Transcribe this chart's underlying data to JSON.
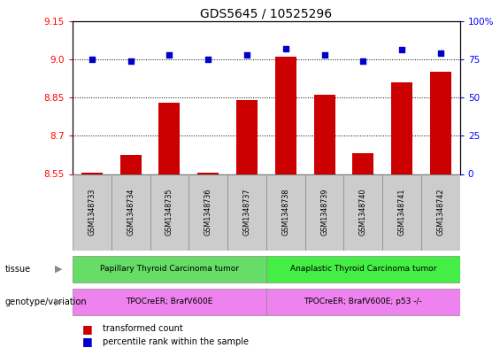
{
  "title": "GDS5645 / 10525296",
  "samples": [
    "GSM1348733",
    "GSM1348734",
    "GSM1348735",
    "GSM1348736",
    "GSM1348737",
    "GSM1348738",
    "GSM1348739",
    "GSM1348740",
    "GSM1348741",
    "GSM1348742"
  ],
  "transformed_count": [
    8.556,
    8.625,
    8.83,
    8.556,
    8.84,
    9.01,
    8.86,
    8.63,
    8.91,
    8.95
  ],
  "percentile_rank": [
    75,
    74,
    78,
    75,
    78,
    82,
    78,
    74,
    81,
    79
  ],
  "ylim_left": [
    8.55,
    9.15
  ],
  "ylim_right": [
    0,
    100
  ],
  "yticks_left": [
    8.55,
    8.7,
    8.85,
    9.0,
    9.15
  ],
  "yticks_right": [
    0,
    25,
    50,
    75,
    100
  ],
  "bar_color": "#cc0000",
  "dot_color": "#0000cc",
  "tissue_labels": [
    "Papillary Thyroid Carcinoma tumor",
    "Anaplastic Thyroid Carcinoma tumor"
  ],
  "tissue_color": "#66dd66",
  "genotype_labels": [
    "TPOCreER; BrafV600E",
    "TPOCreER; BrafV600E; p53 -/-"
  ],
  "genotype_color": "#ee82ee",
  "group1_count": 5,
  "group2_count": 5,
  "legend_items": [
    "transformed count",
    "percentile rank within the sample"
  ],
  "legend_colors": [
    "#cc0000",
    "#0000cc"
  ],
  "tissue_row_label": "tissue",
  "genotype_row_label": "genotype/variation",
  "bg_color": "#ffffff",
  "bar_width": 0.55,
  "sample_col_color": "#cccccc"
}
